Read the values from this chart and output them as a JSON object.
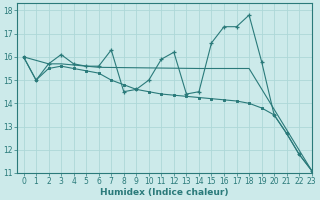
{
  "xlabel": "Humidex (Indice chaleur)",
  "background_color": "#cceaea",
  "grid_color": "#add8d8",
  "line_color": "#2a7a7a",
  "xlim": [
    -0.5,
    23
  ],
  "ylim": [
    11,
    18.3
  ],
  "yticks": [
    11,
    12,
    13,
    14,
    15,
    16,
    17,
    18
  ],
  "xticks": [
    0,
    1,
    2,
    3,
    4,
    5,
    6,
    7,
    8,
    9,
    10,
    11,
    12,
    13,
    14,
    15,
    16,
    17,
    18,
    19,
    20,
    21,
    22,
    23
  ],
  "series1_x": [
    0,
    1,
    2,
    3,
    4,
    5,
    6,
    7,
    8,
    9,
    10,
    11,
    12,
    13,
    14,
    15,
    16,
    17,
    18,
    19,
    20,
    21,
    22,
    23
  ],
  "series1_y": [
    16.0,
    15.0,
    15.7,
    16.1,
    15.7,
    15.6,
    15.6,
    16.3,
    14.5,
    14.6,
    15.0,
    15.9,
    16.2,
    14.4,
    14.5,
    16.6,
    17.3,
    17.3,
    17.8,
    15.8,
    13.5,
    12.7,
    11.8,
    11.1
  ],
  "series2_x": [
    0,
    2,
    3,
    4,
    5,
    6,
    14,
    18,
    23
  ],
  "series2_y": [
    16.0,
    15.7,
    15.7,
    15.65,
    15.6,
    15.55,
    15.5,
    15.5,
    11.1
  ],
  "series3_x": [
    0,
    1,
    2,
    3,
    4,
    5,
    6,
    7,
    8,
    9,
    10,
    11,
    12,
    13,
    14,
    15,
    16,
    17,
    18,
    19,
    20,
    21,
    22,
    23
  ],
  "series3_y": [
    16.0,
    15.0,
    15.5,
    15.6,
    15.5,
    15.4,
    15.3,
    15.0,
    14.8,
    14.6,
    14.5,
    14.4,
    14.35,
    14.3,
    14.25,
    14.2,
    14.15,
    14.1,
    14.0,
    13.8,
    13.5,
    12.7,
    11.8,
    11.1
  ]
}
